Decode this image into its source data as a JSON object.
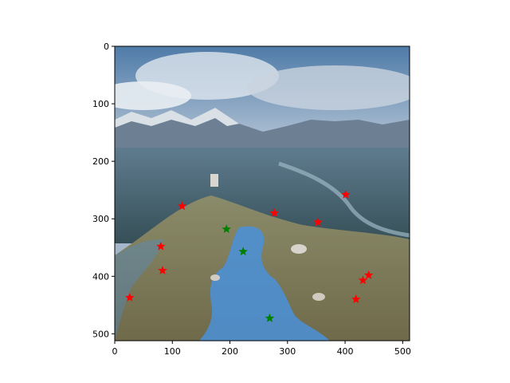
{
  "figure": {
    "image_description_for_render_only": "",
    "x_axis": {
      "min": 0,
      "max": 512,
      "ticks": [
        0,
        100,
        200,
        300,
        400,
        500
      ]
    },
    "y_axis": {
      "min": 0,
      "max": 512,
      "inverted": true,
      "ticks": [
        0,
        100,
        200,
        300,
        400,
        500
      ]
    }
  },
  "chart_data": {
    "type": "scatter",
    "title": "",
    "xlabel": "",
    "ylabel": "",
    "xlim": [
      0,
      512
    ],
    "ylim": [
      512,
      0
    ],
    "grid": false,
    "series": [
      {
        "color": "#ff0000",
        "marker": "star",
        "points": [
          [
            117,
            278
          ],
          [
            277,
            290
          ],
          [
            353,
            306
          ],
          [
            401,
            258
          ],
          [
            80,
            348
          ],
          [
            83,
            390
          ],
          [
            26,
            437
          ],
          [
            441,
            398
          ],
          [
            431,
            407
          ],
          [
            419,
            440
          ]
        ]
      },
      {
        "color": "#008000",
        "marker": "star",
        "points": [
          [
            194,
            318
          ],
          [
            223,
            357
          ],
          [
            269,
            473
          ]
        ]
      }
    ]
  }
}
